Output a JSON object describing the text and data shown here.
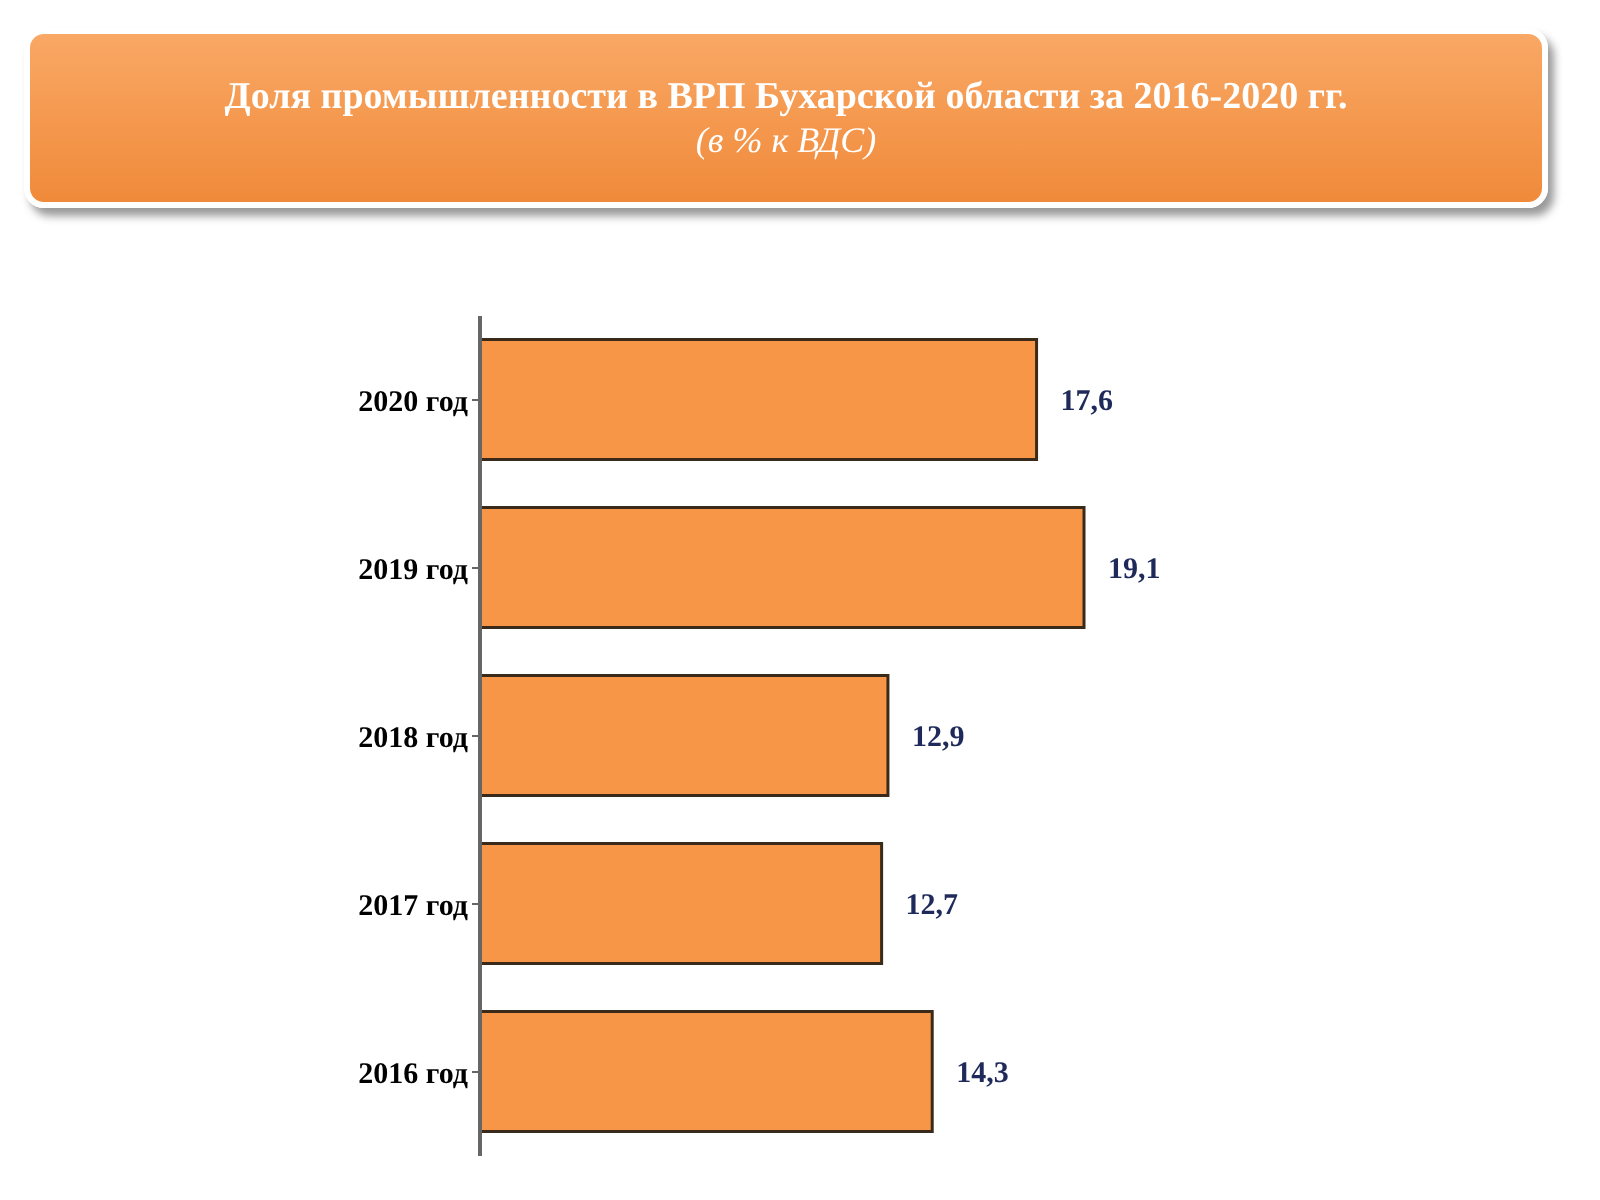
{
  "chart_data": {
    "type": "bar",
    "orientation": "horizontal",
    "title": "Доля промышленности в ВРП Бухарской области за 2016-2020 гг.",
    "subtitle": "(в % к ВДС)",
    "categories": [
      "2020 год",
      "2019 год",
      "2018 год",
      "2017 год",
      "2016 год"
    ],
    "values": [
      17.6,
      19.1,
      12.9,
      12.7,
      14.3
    ],
    "value_labels": [
      "17,6",
      "19,1",
      "12,9",
      "12,7",
      "14,3"
    ],
    "color": "#f79646"
  }
}
